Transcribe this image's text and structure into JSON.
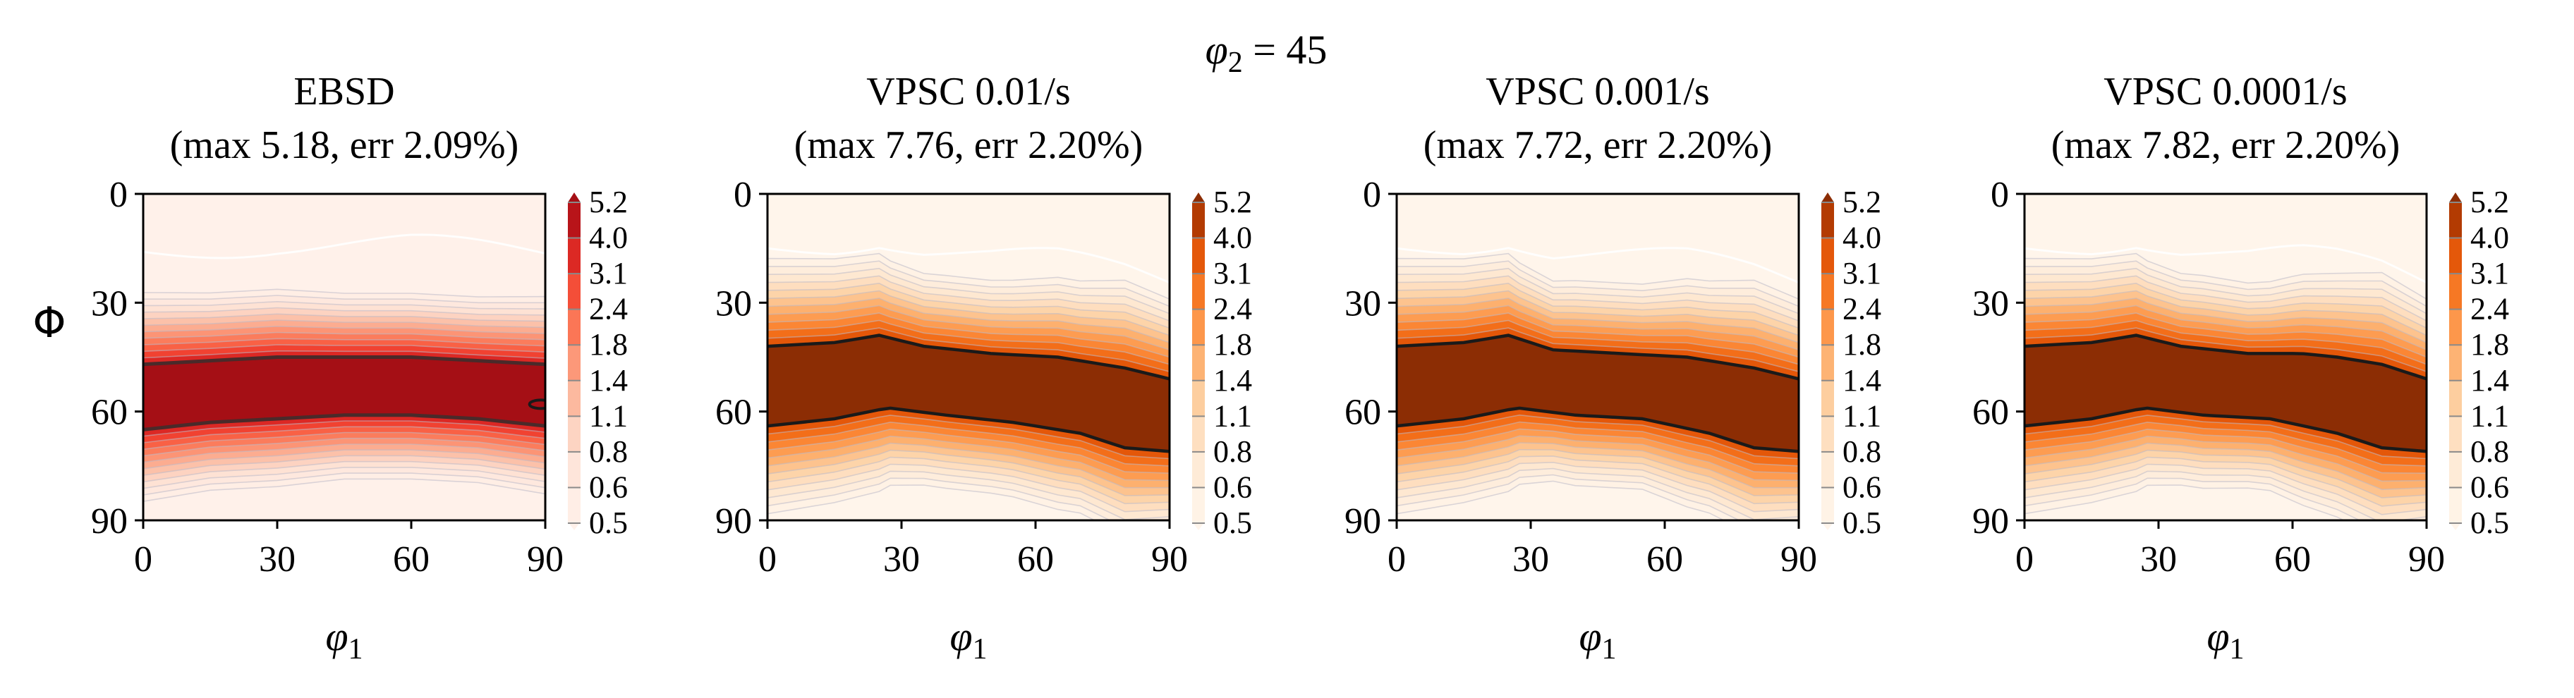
{
  "figure": {
    "suptitle_symbol": "φ",
    "suptitle_sub": "2",
    "suptitle_rest": " = 45"
  },
  "colors": {
    "ebsd_cmap": [
      "#fff1ea",
      "#fee0d2",
      "#fcbba1",
      "#fc9272",
      "#fb6a4a",
      "#ef3b2c",
      "#cb181d",
      "#a50f15"
    ],
    "vpsc_cmap": [
      "#fff5eb",
      "#fee6ce",
      "#fdd0a2",
      "#fdae6b",
      "#fd8d3c",
      "#f16913",
      "#d94801",
      "#8c2d04"
    ],
    "contour_line": "#1a1a1a",
    "low_line": "#ffffff"
  },
  "chart_data": [
    {
      "type": "heatmap",
      "panel": "ebsd",
      "title_line1": "EBSD",
      "title_line2": "(max 5.18, err 2.09%)",
      "xlabel_symbol": "φ",
      "xlabel_sub": "1",
      "ylabel": "Φ",
      "xlim": [
        0,
        90
      ],
      "ylim": [
        90,
        0
      ],
      "xticks": [
        "0",
        "30",
        "60",
        "90"
      ],
      "yticks": [
        "0",
        "30",
        "60",
        "90"
      ],
      "colorbar_levels": [
        "5.2",
        "4.0",
        "3.1",
        "2.4",
        "1.8",
        "1.4",
        "1.1",
        "0.8",
        "0.6",
        "0.5"
      ],
      "max_value": 5.18,
      "band_upper": [
        [
          0,
          47
        ],
        [
          15,
          46
        ],
        [
          30,
          45
        ],
        [
          45,
          45
        ],
        [
          60,
          45
        ],
        [
          75,
          46
        ],
        [
          90,
          47
        ]
      ],
      "band_lower": [
        [
          0,
          65
        ],
        [
          15,
          63
        ],
        [
          30,
          62
        ],
        [
          45,
          61
        ],
        [
          60,
          61
        ],
        [
          75,
          62
        ],
        [
          90,
          64
        ]
      ]
    },
    {
      "type": "heatmap",
      "panel": "vpsc-0.01",
      "title_line1": "VPSC 0.01/s",
      "title_line2": "(max 7.76, err 2.20%)",
      "xlabel_symbol": "φ",
      "xlabel_sub": "1",
      "ylabel": "",
      "xlim": [
        0,
        90
      ],
      "ylim": [
        90,
        0
      ],
      "xticks": [
        "0",
        "30",
        "60",
        "90"
      ],
      "yticks": [
        "0",
        "30",
        "60",
        "90"
      ],
      "colorbar_levels": [
        "5.2",
        "4.0",
        "3.1",
        "2.4",
        "1.8",
        "1.4",
        "1.1",
        "0.8",
        "0.6",
        "0.5"
      ],
      "max_value": 7.76,
      "band_upper": [
        [
          0,
          42
        ],
        [
          15,
          41
        ],
        [
          25,
          39
        ],
        [
          35,
          42
        ],
        [
          50,
          44
        ],
        [
          65,
          45
        ],
        [
          80,
          48
        ],
        [
          90,
          51
        ]
      ],
      "band_lower": [
        [
          0,
          64
        ],
        [
          15,
          62
        ],
        [
          27,
          59
        ],
        [
          40,
          61
        ],
        [
          55,
          63
        ],
        [
          70,
          66
        ],
        [
          80,
          70
        ],
        [
          90,
          71
        ]
      ]
    },
    {
      "type": "heatmap",
      "panel": "vpsc-0.001",
      "title_line1": "VPSC 0.001/s",
      "title_line2": "(max 7.72, err 2.20%)",
      "xlabel_symbol": "φ",
      "xlabel_sub": "1",
      "ylabel": "",
      "xlim": [
        0,
        90
      ],
      "ylim": [
        90,
        0
      ],
      "xticks": [
        "0",
        "30",
        "60",
        "90"
      ],
      "yticks": [
        "0",
        "30",
        "60",
        "90"
      ],
      "colorbar_levels": [
        "5.2",
        "4.0",
        "3.1",
        "2.4",
        "1.8",
        "1.4",
        "1.1",
        "0.8",
        "0.6",
        "0.5"
      ],
      "max_value": 7.72,
      "band_upper": [
        [
          0,
          42
        ],
        [
          15,
          41
        ],
        [
          25,
          39
        ],
        [
          35,
          43
        ],
        [
          50,
          44
        ],
        [
          65,
          45
        ],
        [
          80,
          48
        ],
        [
          90,
          51
        ]
      ],
      "band_lower": [
        [
          0,
          64
        ],
        [
          15,
          62
        ],
        [
          27,
          59
        ],
        [
          40,
          61
        ],
        [
          55,
          62
        ],
        [
          70,
          66
        ],
        [
          80,
          70
        ],
        [
          90,
          71
        ]
      ]
    },
    {
      "type": "heatmap",
      "panel": "vpsc-0.0001",
      "title_line1": "VPSC 0.0001/s",
      "title_line2": "(max 7.82, err 2.20%)",
      "xlabel_symbol": "φ",
      "xlabel_sub": "1",
      "ylabel": "",
      "xlim": [
        0,
        90
      ],
      "ylim": [
        90,
        0
      ],
      "xticks": [
        "0",
        "30",
        "60",
        "90"
      ],
      "yticks": [
        "0",
        "30",
        "60",
        "90"
      ],
      "colorbar_levels": [
        "5.2",
        "4.0",
        "3.1",
        "2.4",
        "1.8",
        "1.4",
        "1.1",
        "0.8",
        "0.6",
        "0.5"
      ],
      "max_value": 7.82,
      "band_upper": [
        [
          0,
          42
        ],
        [
          15,
          41
        ],
        [
          25,
          39
        ],
        [
          35,
          42
        ],
        [
          50,
          44
        ],
        [
          62,
          44
        ],
        [
          70,
          45
        ],
        [
          80,
          47
        ],
        [
          90,
          51
        ]
      ],
      "band_lower": [
        [
          0,
          64
        ],
        [
          15,
          62
        ],
        [
          27,
          59
        ],
        [
          40,
          61
        ],
        [
          55,
          62
        ],
        [
          70,
          66
        ],
        [
          80,
          70
        ],
        [
          90,
          71
        ]
      ]
    }
  ]
}
